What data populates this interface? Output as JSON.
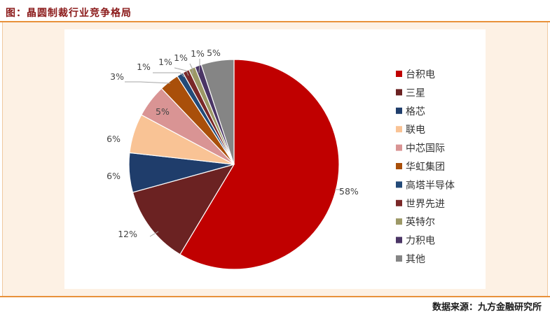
{
  "header": {
    "title": "图：晶圆制裁行业竞争格局"
  },
  "footer": {
    "source": "数据来源：九方金融研究所"
  },
  "chart_data": {
    "type": "pie",
    "title": "",
    "categories": [
      "台积电",
      "三星",
      "格芯",
      "联电",
      "中芯国际",
      "华虹集团",
      "高塔半导体",
      "世界先进",
      "英特尔",
      "力积电",
      "其他"
    ],
    "values": [
      58,
      12,
      6,
      6,
      5,
      3,
      1,
      1,
      1,
      1,
      5
    ],
    "data_labels": [
      "58%",
      "12%",
      "6%",
      "6%",
      "5%",
      "3%",
      "1%",
      "1%",
      "1%",
      "1%",
      "5%"
    ],
    "colors": [
      "#c00000",
      "#6b2222",
      "#1f3d6b",
      "#f9c395",
      "#d99494",
      "#a94f0a",
      "#234a78",
      "#7a2828",
      "#9c9866",
      "#4a3565",
      "#858585"
    ],
    "legend_position": "right"
  }
}
